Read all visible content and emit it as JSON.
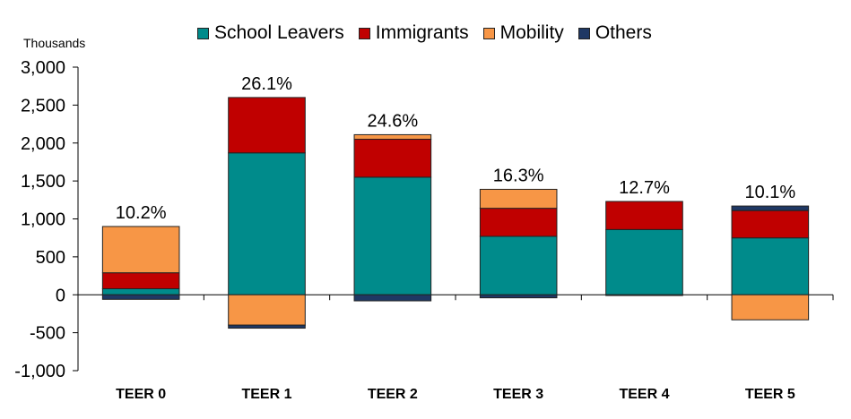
{
  "chart_data": {
    "type": "bar",
    "stacked": true,
    "units_label": "Thousands",
    "categories": [
      "TEER 0",
      "TEER 1",
      "TEER 2",
      "TEER 3",
      "TEER 4",
      "TEER 5"
    ],
    "series": [
      {
        "name": "School Leavers",
        "color": "#008B8B",
        "values": [
          80,
          1870,
          1550,
          770,
          860,
          750
        ]
      },
      {
        "name": "Immigrants",
        "color": "#C00000",
        "values": [
          210,
          730,
          500,
          370,
          370,
          360
        ]
      },
      {
        "name": "Mobility",
        "color": "#F79646",
        "values": [
          610,
          -400,
          60,
          250,
          0,
          -330
        ]
      },
      {
        "name": "Others",
        "color": "#1F3864",
        "values": [
          -60,
          -40,
          -80,
          -40,
          -10,
          60
        ]
      }
    ],
    "bar_labels": [
      "10.2%",
      "26.1%",
      "24.6%",
      "16.3%",
      "12.7%",
      "10.1%"
    ],
    "ylim": [
      -1000,
      3000
    ],
    "yticks": [
      -1000,
      -500,
      0,
      500,
      1000,
      1500,
      2000,
      2500,
      3000
    ],
    "ytick_labels": [
      "-1,000",
      "-500",
      "0",
      "500",
      "1,000",
      "1,500",
      "2,000",
      "2,500",
      "3,000"
    ],
    "legend_position": "top"
  }
}
